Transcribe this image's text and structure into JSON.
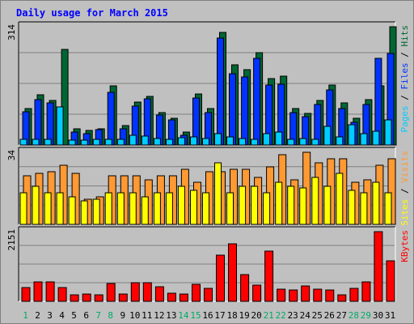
{
  "chart_data": {
    "type": "bar",
    "title": "Daily usage for March 2015",
    "categories": [
      "1",
      "2",
      "3",
      "4",
      "5",
      "6",
      "7",
      "8",
      "9",
      "10",
      "11",
      "12",
      "13",
      "14",
      "15",
      "16",
      "17",
      "18",
      "19",
      "20",
      "21",
      "22",
      "23",
      "24",
      "25",
      "26",
      "27",
      "28",
      "29",
      "30",
      "31"
    ],
    "weekend_days": [
      "1",
      "7",
      "8",
      "14",
      "15",
      "21",
      "22",
      "28",
      "29"
    ],
    "panels": [
      {
        "id": "hits-files-pages",
        "max_label": "314",
        "ylim": [
          0,
          314
        ],
        "legend": [
          "Pages",
          "Files",
          "Hits"
        ],
        "series": [
          {
            "name": "Hits",
            "color": "#006633",
            "values": [
              96,
              134,
              118,
              254,
              44,
              38,
              44,
              156,
              52,
              115,
              128,
              86,
              72,
              34,
              136,
              96,
              298,
              212,
              200,
              246,
              176,
              182,
              96,
              84,
              118,
              160,
              112,
              72,
              120,
              156,
              314
            ]
          },
          {
            "name": "Files",
            "color": "#0033ff",
            "values": [
              88,
              120,
              112,
              0,
              34,
              30,
              40,
              140,
              42,
              104,
              122,
              80,
              66,
              26,
              124,
              86,
              284,
              190,
              180,
              230,
              160,
              162,
              86,
              76,
              108,
              146,
              96,
              60,
              108,
              230,
              244
            ]
          },
          {
            "name": "Pages",
            "color": "#00ccff",
            "values": [
              14,
              16,
              16,
              102,
              12,
              12,
              14,
              16,
              16,
              26,
              24,
              18,
              16,
              20,
              22,
              18,
              30,
              22,
              18,
              16,
              30,
              34,
              16,
              18,
              14,
              50,
              22,
              54,
              30,
              36,
              66
            ]
          }
        ]
      },
      {
        "id": "visits-sites",
        "max_label": "34",
        "ylim": [
          0,
          34
        ],
        "legend": [
          "Sites",
          "Visits"
        ],
        "series": [
          {
            "name": "Visits",
            "color": "#ff9933",
            "values": [
              23,
              24,
              25,
              28,
              24,
              12,
              13,
              23,
              23,
              23,
              21,
              23,
              23,
              26,
              20,
              25,
              25,
              26,
              26,
              22,
              27,
              33,
              21,
              34,
              29,
              31,
              31,
              20,
              21,
              28,
              31
            ]
          },
          {
            "name": "Sites",
            "color": "#ffff00",
            "values": [
              15,
              18,
              15,
              15,
              13,
              11,
              12,
              15,
              15,
              15,
              13,
              15,
              15,
              18,
              16,
              15,
              29,
              15,
              18,
              18,
              15,
              20,
              18,
              17,
              22,
              18,
              24,
              16,
              15,
              20,
              15
            ]
          }
        ]
      },
      {
        "id": "kbytes",
        "max_label": "2151",
        "ylim": [
          0,
          2151
        ],
        "legend": [
          "KBytes"
        ],
        "series": [
          {
            "name": "KBytes",
            "color": "#ff0000",
            "values": [
              420,
              590,
              590,
              420,
              200,
              230,
              200,
              550,
              220,
              570,
              570,
              450,
              260,
              220,
              520,
              400,
              1420,
              1770,
              830,
              500,
              1560,
              370,
              360,
              480,
              370,
              340,
              210,
              390,
              600,
              2151,
              1260
            ]
          }
        ]
      }
    ]
  },
  "colors": {
    "background": "#c0c0c0",
    "title": "#0000ff",
    "weekday_label": "#006633",
    "weekend_label": "#00aa66",
    "outline": "#000000"
  }
}
